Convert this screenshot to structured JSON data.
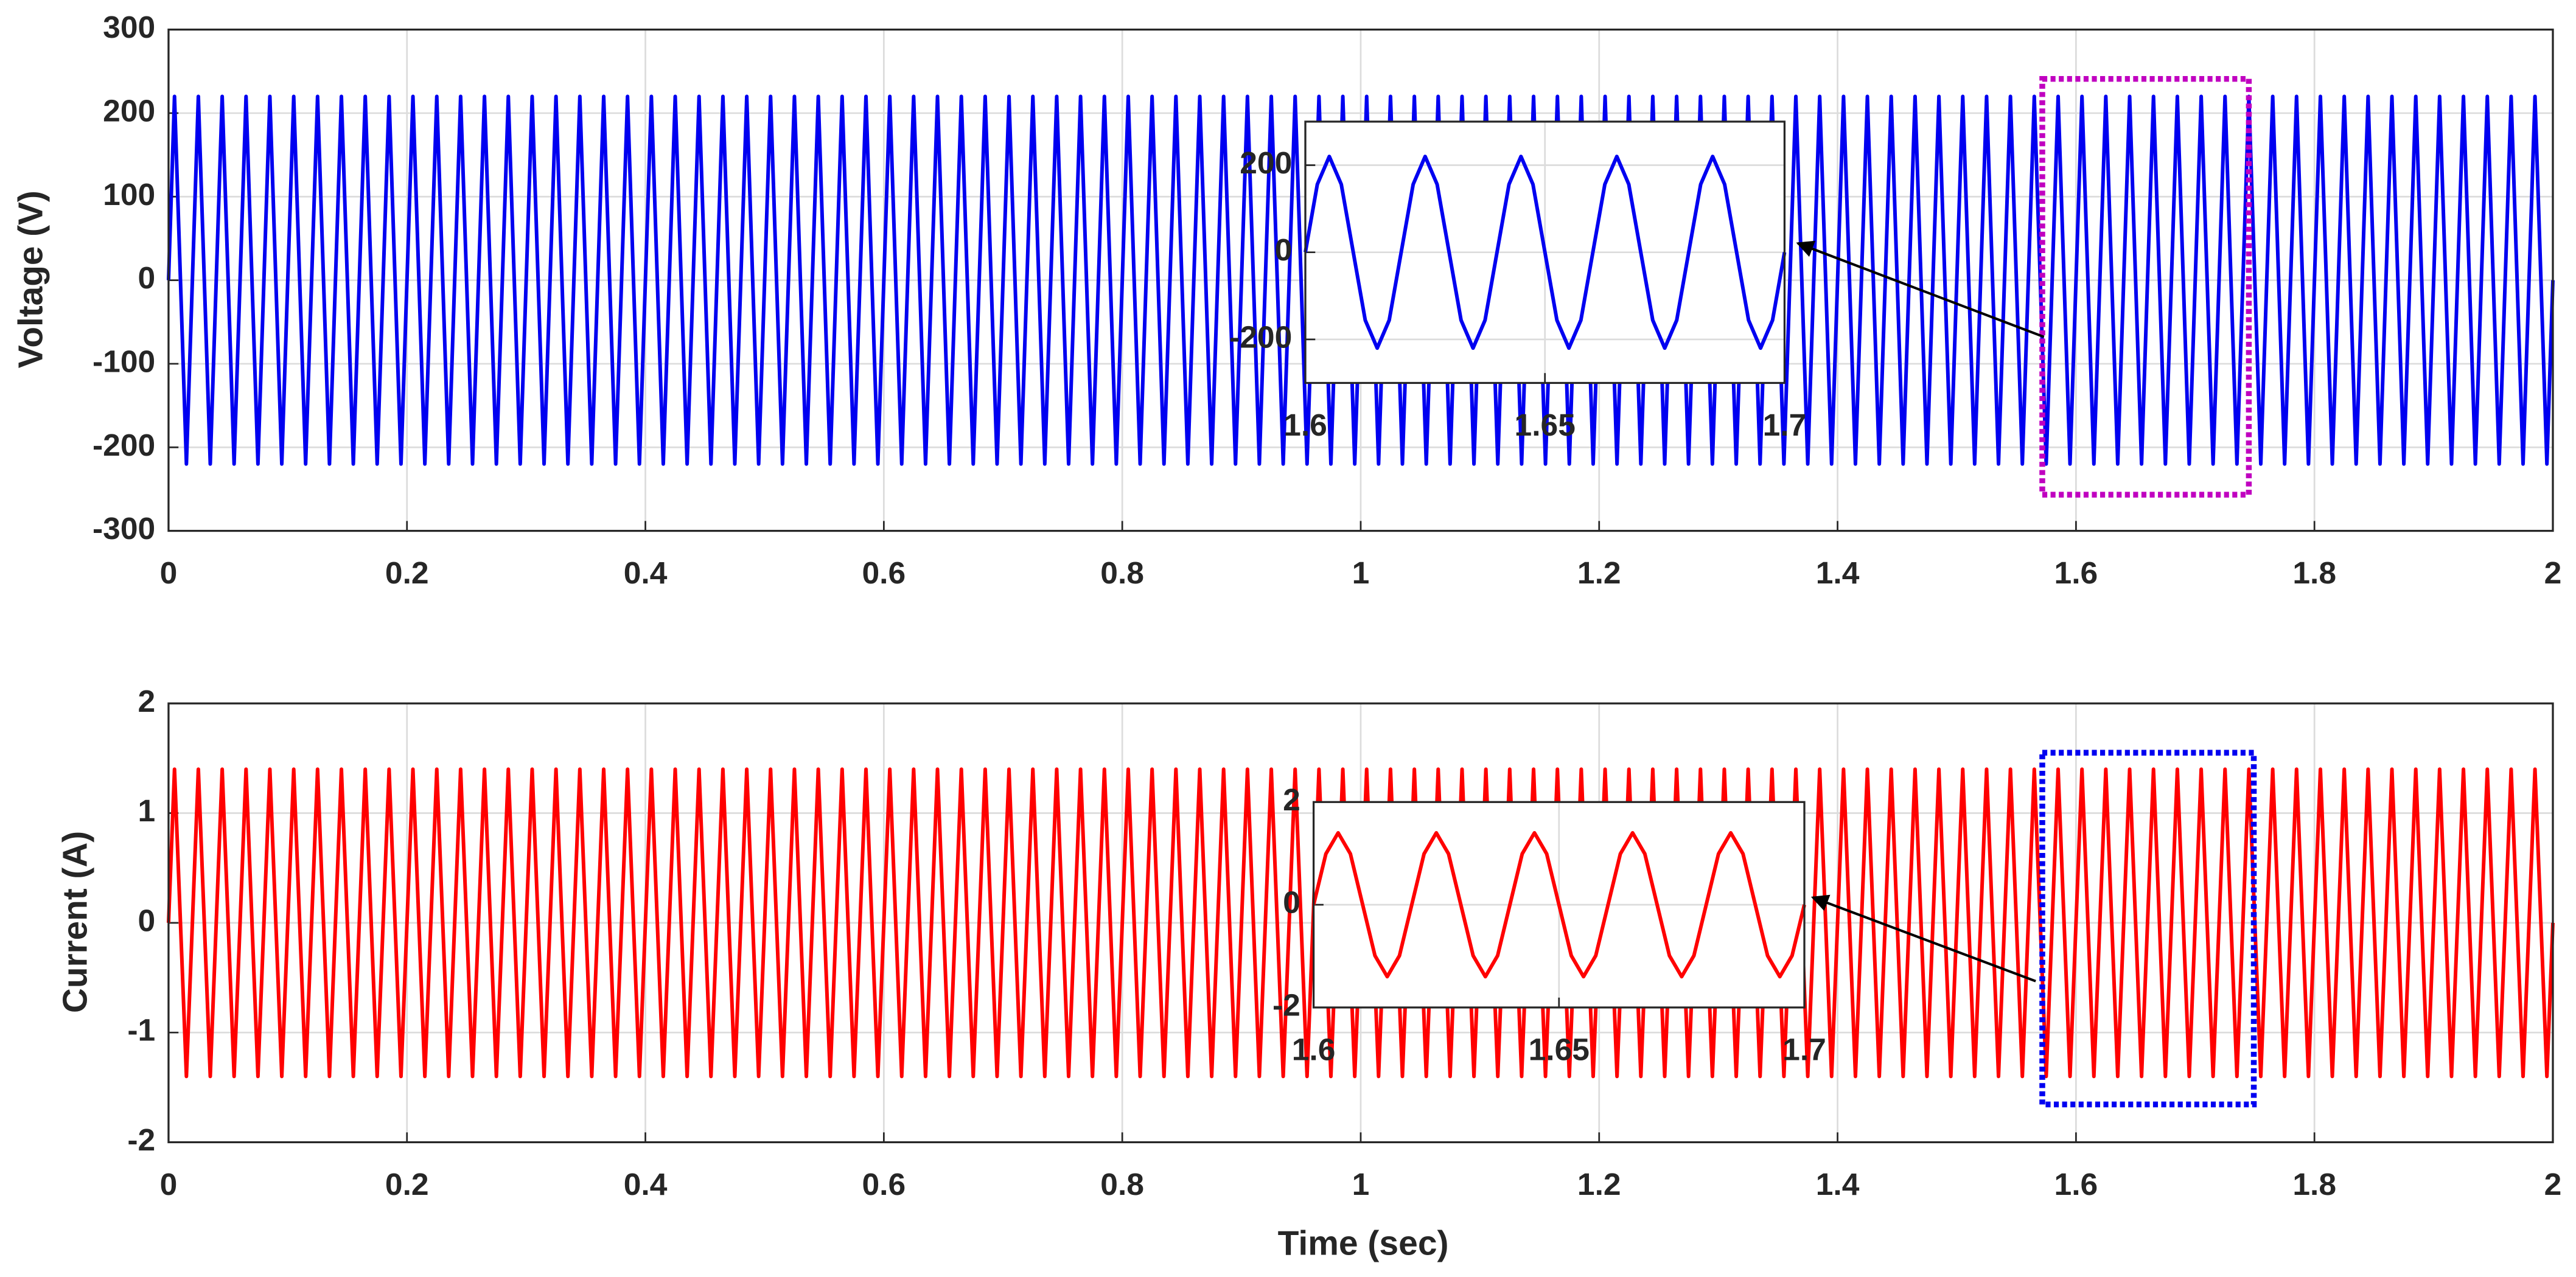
{
  "chart_data": [
    {
      "type": "line",
      "ylabel": "Voltage (V)",
      "xlim": [
        0,
        2
      ],
      "xticks": [
        0,
        0.2,
        0.4,
        0.6,
        0.8,
        1,
        1.2,
        1.4,
        1.6,
        1.8,
        2
      ],
      "ylim": [
        -300,
        300
      ],
      "yticks": [
        -300,
        -200,
        -100,
        0,
        100,
        200,
        300
      ],
      "grid": true,
      "x": [
        0,
        0.005,
        0.015,
        0.025,
        0.035,
        0.045,
        0.055,
        0.065,
        0.075,
        0.085,
        0.095,
        0.105,
        0.115,
        0.125,
        0.135,
        0.145,
        0.155,
        0.165,
        0.175,
        0.185,
        0.195,
        0.205,
        0.215,
        0.225,
        0.235,
        0.245,
        0.255,
        0.265,
        0.275,
        0.285,
        0.295,
        0.305,
        0.315,
        0.325,
        0.335,
        0.345,
        0.355,
        0.365,
        0.375,
        0.385,
        0.395,
        0.405,
        0.415,
        0.425,
        0.435,
        0.445,
        0.455,
        0.465,
        0.475,
        0.485,
        0.495,
        0.505,
        0.515,
        0.525,
        0.535,
        0.545,
        0.555,
        0.565,
        0.575,
        0.585,
        0.595,
        0.605,
        0.615,
        0.625,
        0.635,
        0.645,
        0.655,
        0.665,
        0.675,
        0.685,
        0.695,
        0.705,
        0.715,
        0.725,
        0.735,
        0.745,
        0.755,
        0.765,
        0.775,
        0.785,
        0.795,
        0.805,
        0.815,
        0.825,
        0.835,
        0.845,
        0.855,
        0.865,
        0.875,
        0.885,
        0.895,
        0.905,
        0.915,
        0.925,
        0.935,
        0.945,
        0.955,
        0.965,
        0.975,
        0.985,
        0.995,
        1.005,
        1.015,
        1.025,
        1.035,
        1.045,
        1.055,
        1.065,
        1.075,
        1.085,
        1.095,
        1.105,
        1.115,
        1.125,
        1.135,
        1.145,
        1.155,
        1.165,
        1.175,
        1.185,
        1.195,
        1.205,
        1.215,
        1.225,
        1.235,
        1.245,
        1.255,
        1.265,
        1.275,
        1.285,
        1.295,
        1.305,
        1.315,
        1.325,
        1.335,
        1.345,
        1.355,
        1.365,
        1.375,
        1.385,
        1.395,
        1.405,
        1.415,
        1.425,
        1.435,
        1.445,
        1.455,
        1.465,
        1.475,
        1.485,
        1.495,
        1.505,
        1.515,
        1.525,
        1.535,
        1.545,
        1.555,
        1.565,
        1.575,
        1.585,
        1.595,
        1.605,
        1.615,
        1.625,
        1.635,
        1.645,
        1.655,
        1.665,
        1.675,
        1.685,
        1.695,
        1.705,
        1.715,
        1.725,
        1.735,
        1.745,
        1.755,
        1.765,
        1.775,
        1.785,
        1.795,
        1.805,
        1.815,
        1.825,
        1.835,
        1.845,
        1.855,
        1.865,
        1.875,
        1.885,
        1.895,
        1.905,
        1.915,
        1.925,
        1.935,
        1.945,
        1.955,
        1.965,
        1.975,
        1.985,
        1.995,
        2
      ],
      "series": [
        {
          "color": "#0000f0",
          "values": [
            0,
            220,
            -220,
            220,
            -220,
            220,
            -220,
            220,
            -220,
            220,
            -220,
            220,
            -220,
            220,
            -220,
            220,
            -220,
            220,
            -220,
            220,
            -220,
            220,
            -220,
            220,
            -220,
            220,
            -220,
            220,
            -220,
            220,
            -220,
            220,
            -220,
            220,
            -220,
            220,
            -220,
            220,
            -220,
            220,
            -220,
            220,
            -220,
            220,
            -220,
            220,
            -220,
            220,
            -220,
            220,
            -220,
            220,
            -220,
            220,
            -220,
            220,
            -220,
            220,
            -220,
            220,
            -220,
            220,
            -220,
            220,
            -220,
            220,
            -220,
            220,
            -220,
            220,
            -220,
            220,
            -220,
            220,
            -220,
            220,
            -220,
            220,
            -220,
            220,
            -220,
            220,
            -220,
            220,
            -220,
            220,
            -220,
            220,
            -220,
            220,
            -220,
            220,
            -220,
            220,
            -220,
            220,
            -220,
            220,
            -220,
            220,
            -220,
            220,
            -220,
            220,
            -220,
            220,
            -220,
            220,
            -220,
            220,
            -220,
            220,
            -220,
            220,
            -220,
            220,
            -220,
            220,
            -220,
            220,
            -220,
            220,
            -220,
            220,
            -220,
            220,
            -220,
            220,
            -220,
            220,
            -220,
            220,
            -220,
            220,
            -220,
            220,
            -220,
            220,
            -220,
            220,
            -220,
            220,
            -220,
            220,
            -220,
            220,
            -220,
            220,
            -220,
            220,
            -220,
            220,
            -220,
            220,
            -220,
            220,
            -220,
            220,
            -220,
            220,
            -220,
            220,
            -220,
            220,
            -220,
            220,
            -220,
            220,
            -220,
            220,
            -220,
            220,
            -220,
            220,
            -220,
            220,
            -220,
            220,
            -220,
            220,
            -220,
            220,
            -220,
            220,
            -220,
            220,
            -220,
            220,
            -220,
            220,
            -220,
            220,
            -220,
            220,
            -220,
            220,
            -220,
            220,
            -220,
            220,
            -220,
            0
          ]
        }
      ]
    },
    {
      "type": "line",
      "xlim": [
        1.6,
        1.7
      ],
      "xticks": [
        1.6,
        1.65,
        1.7
      ],
      "ylim": [
        -300,
        300
      ],
      "yticks": [
        -200,
        0,
        200
      ],
      "grid": true,
      "x": [
        1.6,
        1.6025,
        1.605,
        1.6075,
        1.61,
        1.6125,
        1.615,
        1.6175,
        1.62,
        1.6225,
        1.625,
        1.6275,
        1.63,
        1.6325,
        1.635,
        1.6375,
        1.64,
        1.6425,
        1.645,
        1.6475,
        1.65,
        1.6525,
        1.655,
        1.6575,
        1.66,
        1.6625,
        1.665,
        1.6675,
        1.67,
        1.6725,
        1.675,
        1.6775,
        1.68,
        1.6825,
        1.685,
        1.6875,
        1.69,
        1.6925,
        1.695,
        1.6975,
        1.7
      ],
      "series": [
        {
          "color": "#0000f0",
          "values": [
            0,
            156,
            220,
            156,
            0,
            -156,
            -220,
            -156,
            0,
            156,
            220,
            156,
            0,
            -156,
            -220,
            -156,
            0,
            156,
            220,
            156,
            0,
            -156,
            -220,
            -156,
            0,
            156,
            220,
            156,
            0,
            -156,
            -220,
            -156,
            0,
            156,
            220,
            156,
            0,
            -156,
            -220,
            -156,
            0
          ]
        }
      ]
    },
    {
      "type": "line",
      "ylabel": "Current (A)",
      "xlabel": "Time (sec)",
      "xlim": [
        0,
        2
      ],
      "xticks": [
        0,
        0.2,
        0.4,
        0.6,
        0.8,
        1,
        1.2,
        1.4,
        1.6,
        1.8,
        2
      ],
      "ylim": [
        -2,
        2
      ],
      "yticks": [
        -2,
        -1,
        0,
        1,
        2
      ],
      "grid": true,
      "x": [
        0,
        0.005,
        0.015,
        0.025,
        0.035,
        0.045,
        0.055,
        0.065,
        0.075,
        0.085,
        0.095,
        0.105,
        0.115,
        0.125,
        0.135,
        0.145,
        0.155,
        0.165,
        0.175,
        0.185,
        0.195,
        0.205,
        0.215,
        0.225,
        0.235,
        0.245,
        0.255,
        0.265,
        0.275,
        0.285,
        0.295,
        0.305,
        0.315,
        0.325,
        0.335,
        0.345,
        0.355,
        0.365,
        0.375,
        0.385,
        0.395,
        0.405,
        0.415,
        0.425,
        0.435,
        0.445,
        0.455,
        0.465,
        0.475,
        0.485,
        0.495,
        0.505,
        0.515,
        0.525,
        0.535,
        0.545,
        0.555,
        0.565,
        0.575,
        0.585,
        0.595,
        0.605,
        0.615,
        0.625,
        0.635,
        0.645,
        0.655,
        0.665,
        0.675,
        0.685,
        0.695,
        0.705,
        0.715,
        0.725,
        0.735,
        0.745,
        0.755,
        0.765,
        0.775,
        0.785,
        0.795,
        0.805,
        0.815,
        0.825,
        0.835,
        0.845,
        0.855,
        0.865,
        0.875,
        0.885,
        0.895,
        0.905,
        0.915,
        0.925,
        0.935,
        0.945,
        0.955,
        0.965,
        0.975,
        0.985,
        0.995,
        1.005,
        1.015,
        1.025,
        1.035,
        1.045,
        1.055,
        1.065,
        1.075,
        1.085,
        1.095,
        1.105,
        1.115,
        1.125,
        1.135,
        1.145,
        1.155,
        1.165,
        1.175,
        1.185,
        1.195,
        1.205,
        1.215,
        1.225,
        1.235,
        1.245,
        1.255,
        1.265,
        1.275,
        1.285,
        1.295,
        1.305,
        1.315,
        1.325,
        1.335,
        1.345,
        1.355,
        1.365,
        1.375,
        1.385,
        1.395,
        1.405,
        1.415,
        1.425,
        1.435,
        1.445,
        1.455,
        1.465,
        1.475,
        1.485,
        1.495,
        1.505,
        1.515,
        1.525,
        1.535,
        1.545,
        1.555,
        1.565,
        1.575,
        1.585,
        1.595,
        1.605,
        1.615,
        1.625,
        1.635,
        1.645,
        1.655,
        1.665,
        1.675,
        1.685,
        1.695,
        1.705,
        1.715,
        1.725,
        1.735,
        1.745,
        1.755,
        1.765,
        1.775,
        1.785,
        1.795,
        1.805,
        1.815,
        1.825,
        1.835,
        1.845,
        1.855,
        1.865,
        1.875,
        1.885,
        1.895,
        1.905,
        1.915,
        1.925,
        1.935,
        1.945,
        1.955,
        1.965,
        1.975,
        1.985,
        1.995,
        2
      ],
      "series": [
        {
          "color": "#ff0000",
          "values": [
            0,
            1.4,
            -1.4,
            1.4,
            -1.4,
            1.4,
            -1.4,
            1.4,
            -1.4,
            1.4,
            -1.4,
            1.4,
            -1.4,
            1.4,
            -1.4,
            1.4,
            -1.4,
            1.4,
            -1.4,
            1.4,
            -1.4,
            1.4,
            -1.4,
            1.4,
            -1.4,
            1.4,
            -1.4,
            1.4,
            -1.4,
            1.4,
            -1.4,
            1.4,
            -1.4,
            1.4,
            -1.4,
            1.4,
            -1.4,
            1.4,
            -1.4,
            1.4,
            -1.4,
            1.4,
            -1.4,
            1.4,
            -1.4,
            1.4,
            -1.4,
            1.4,
            -1.4,
            1.4,
            -1.4,
            1.4,
            -1.4,
            1.4,
            -1.4,
            1.4,
            -1.4,
            1.4,
            -1.4,
            1.4,
            -1.4,
            1.4,
            -1.4,
            1.4,
            -1.4,
            1.4,
            -1.4,
            1.4,
            -1.4,
            1.4,
            -1.4,
            1.4,
            -1.4,
            1.4,
            -1.4,
            1.4,
            -1.4,
            1.4,
            -1.4,
            1.4,
            -1.4,
            1.4,
            -1.4,
            1.4,
            -1.4,
            1.4,
            -1.4,
            1.4,
            -1.4,
            1.4,
            -1.4,
            1.4,
            -1.4,
            1.4,
            -1.4,
            1.4,
            -1.4,
            1.4,
            -1.4,
            1.4,
            -1.4,
            1.4,
            -1.4,
            1.4,
            -1.4,
            1.4,
            -1.4,
            1.4,
            -1.4,
            1.4,
            -1.4,
            1.4,
            -1.4,
            1.4,
            -1.4,
            1.4,
            -1.4,
            1.4,
            -1.4,
            1.4,
            -1.4,
            1.4,
            -1.4,
            1.4,
            -1.4,
            1.4,
            -1.4,
            1.4,
            -1.4,
            1.4,
            -1.4,
            1.4,
            -1.4,
            1.4,
            -1.4,
            1.4,
            -1.4,
            1.4,
            -1.4,
            1.4,
            -1.4,
            1.4,
            -1.4,
            1.4,
            -1.4,
            1.4,
            -1.4,
            1.4,
            -1.4,
            1.4,
            -1.4,
            1.4,
            -1.4,
            1.4,
            -1.4,
            1.4,
            -1.4,
            1.4,
            -1.4,
            1.4,
            -1.4,
            1.4,
            -1.4,
            1.4,
            -1.4,
            1.4,
            -1.4,
            1.4,
            -1.4,
            1.4,
            -1.4,
            1.4,
            -1.4,
            1.4,
            -1.4,
            1.4,
            -1.4,
            1.4,
            -1.4,
            1.4,
            -1.4,
            1.4,
            -1.4,
            1.4,
            -1.4,
            1.4,
            -1.4,
            1.4,
            -1.4,
            1.4,
            -1.4,
            1.4,
            -1.4,
            1.4,
            -1.4,
            1.4,
            -1.4,
            1.4,
            -1.4,
            1.4,
            -1.4,
            0
          ]
        }
      ]
    },
    {
      "type": "line",
      "xlim": [
        1.6,
        1.7
      ],
      "xticks": [
        1.6,
        1.65,
        1.7
      ],
      "ylim": [
        -2,
        2
      ],
      "yticks": [
        -2,
        0,
        2
      ],
      "grid": true,
      "x": [
        1.6,
        1.6025,
        1.605,
        1.6075,
        1.61,
        1.6125,
        1.615,
        1.6175,
        1.62,
        1.6225,
        1.625,
        1.6275,
        1.63,
        1.6325,
        1.635,
        1.6375,
        1.64,
        1.6425,
        1.645,
        1.6475,
        1.65,
        1.6525,
        1.655,
        1.6575,
        1.66,
        1.6625,
        1.665,
        1.6675,
        1.67,
        1.6725,
        1.675,
        1.6775,
        1.68,
        1.6825,
        1.685,
        1.6875,
        1.69,
        1.6925,
        1.695,
        1.6975,
        1.7
      ],
      "series": [
        {
          "color": "#ff0000",
          "values": [
            0,
            0.99,
            1.4,
            0.99,
            0,
            -0.99,
            -1.4,
            -0.99,
            0,
            0.99,
            1.4,
            0.99,
            0,
            -0.99,
            -1.4,
            -0.99,
            0,
            0.99,
            1.4,
            0.99,
            0,
            -0.99,
            -1.4,
            -0.99,
            0,
            0.99,
            1.4,
            0.99,
            0,
            -0.99,
            -1.4,
            -0.99,
            0,
            0.99,
            1.4,
            0.99,
            0,
            -0.99,
            -1.4,
            -0.99,
            0
          ]
        }
      ]
    }
  ]
}
